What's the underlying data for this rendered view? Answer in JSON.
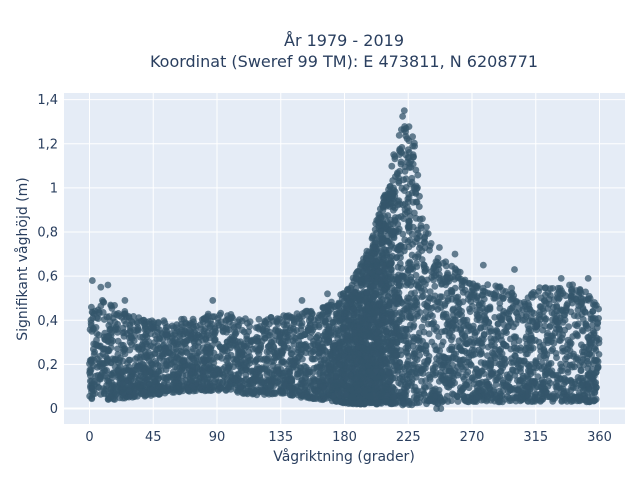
{
  "chart_data": {
    "type": "scatter",
    "title_line1": "År 1979 - 2019",
    "title_line2": "Koordinat (Sweref 99 TM): E 473811, N 6208771",
    "xlabel": "Vågriktning (grader)",
    "ylabel": "Signifikant våghöjd (m)",
    "xlim": [
      -18,
      378
    ],
    "ylim": [
      -0.07,
      1.43
    ],
    "x_ticks": [
      0,
      45,
      90,
      135,
      180,
      225,
      270,
      315,
      360
    ],
    "x_tick_labels": [
      "0",
      "45",
      "90",
      "135",
      "180",
      "225",
      "270",
      "315",
      "360"
    ],
    "y_ticks": [
      0,
      0.2,
      0.4,
      0.6,
      0.8,
      1.0,
      1.2,
      1.4
    ],
    "y_tick_labels": [
      "0",
      "0,2",
      "0,4",
      "0,6",
      "0,8",
      "1",
      "1,2",
      "1,4"
    ],
    "grid": true,
    "legend": "none",
    "colors": {
      "marker": "#34566b",
      "plot_bg": "#e5ecf6",
      "grid": "#ffffff",
      "text": "#2a3f5f"
    },
    "envelope_x": [
      0,
      10,
      20,
      30,
      45,
      60,
      75,
      90,
      105,
      120,
      135,
      150,
      165,
      175,
      185,
      195,
      205,
      212,
      218,
      222,
      225,
      228,
      232,
      238,
      245,
      255,
      270,
      285,
      300,
      315,
      330,
      345,
      360
    ],
    "envelope_top": [
      0.46,
      0.5,
      0.46,
      0.42,
      0.4,
      0.4,
      0.42,
      0.44,
      0.42,
      0.42,
      0.42,
      0.44,
      0.46,
      0.5,
      0.58,
      0.7,
      0.9,
      1.08,
      1.25,
      1.36,
      1.37,
      1.3,
      1.1,
      0.85,
      0.72,
      0.65,
      0.58,
      0.56,
      0.55,
      0.56,
      0.56,
      0.58,
      0.48
    ],
    "envelope_bottom": [
      0.04,
      0.04,
      0.04,
      0.05,
      0.06,
      0.07,
      0.08,
      0.08,
      0.07,
      0.06,
      0.07,
      0.05,
      0.04,
      0.03,
      0.02,
      0.02,
      0.02,
      0.02,
      0.02,
      0.01,
      0.01,
      0.01,
      0.02,
      0.02,
      0.02,
      0.03,
      0.03,
      0.03,
      0.03,
      0.03,
      0.03,
      0.03,
      0.03
    ],
    "outliers": [
      {
        "x": 2,
        "y": 0.58
      },
      {
        "x": 8,
        "y": 0.55
      },
      {
        "x": 13,
        "y": 0.56
      },
      {
        "x": 25,
        "y": 0.49
      },
      {
        "x": 87,
        "y": 0.49
      },
      {
        "x": 150,
        "y": 0.49
      },
      {
        "x": 168,
        "y": 0.52
      },
      {
        "x": 230,
        "y": 0.98
      },
      {
        "x": 235,
        "y": 0.86
      },
      {
        "x": 247,
        "y": 0.73
      },
      {
        "x": 258,
        "y": 0.7
      },
      {
        "x": 278,
        "y": 0.65
      },
      {
        "x": 300,
        "y": 0.63
      },
      {
        "x": 333,
        "y": 0.59
      },
      {
        "x": 352,
        "y": 0.59
      },
      {
        "x": 240,
        "y": 0.04
      },
      {
        "x": 245,
        "y": 0.0
      },
      {
        "x": 248,
        "y": 0.0
      }
    ]
  }
}
